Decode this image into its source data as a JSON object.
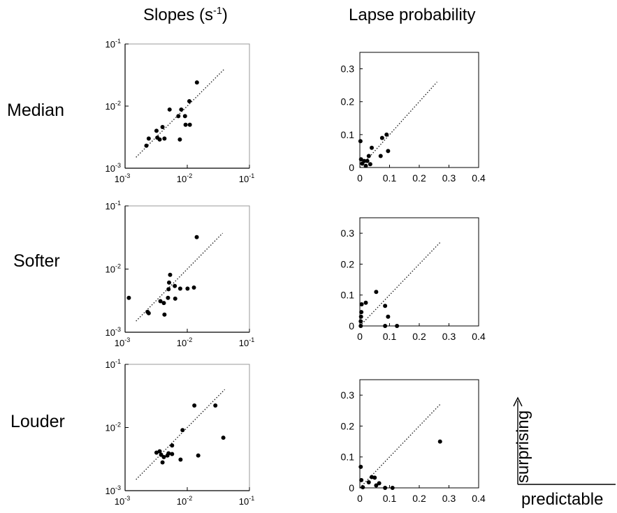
{
  "titles": {
    "slopes_prefix": "Slopes (s",
    "slopes_exp": "-1",
    "slopes_suffix": ")",
    "lapse": "Lapse probability"
  },
  "row_labels": [
    "Median",
    "Softer",
    "Louder"
  ],
  "legend": {
    "y": "surprising",
    "x": "predictable"
  },
  "chart_data": [
    {
      "type": "scatter",
      "row": "Median",
      "panel": "slopes",
      "scale": "log",
      "xlim": [
        0.001,
        0.1
      ],
      "ylim": [
        0.001,
        0.1
      ],
      "x_ticks": [
        {
          "base": "10",
          "exp": "-3"
        },
        {
          "base": "10",
          "exp": "-2"
        },
        {
          "base": "10",
          "exp": "-1"
        }
      ],
      "y_ticks": [
        {
          "base": "10",
          "exp": "-3"
        },
        {
          "base": "10",
          "exp": "-2"
        },
        {
          "base": "10",
          "exp": "-1"
        }
      ],
      "identity_line": [
        0.0015,
        0.04
      ],
      "points": [
        [
          0.0022,
          0.0023
        ],
        [
          0.0024,
          0.003
        ],
        [
          0.0032,
          0.004
        ],
        [
          0.0033,
          0.0031
        ],
        [
          0.0036,
          0.0029
        ],
        [
          0.004,
          0.0046
        ],
        [
          0.0043,
          0.003
        ],
        [
          0.0052,
          0.0088
        ],
        [
          0.0072,
          0.0069
        ],
        [
          0.0076,
          0.0029
        ],
        [
          0.008,
          0.0088
        ],
        [
          0.0092,
          0.0069
        ],
        [
          0.0094,
          0.005
        ],
        [
          0.0108,
          0.012
        ],
        [
          0.011,
          0.005
        ],
        [
          0.0143,
          0.024
        ]
      ]
    },
    {
      "type": "scatter",
      "row": "Median",
      "panel": "lapse",
      "xlim": [
        0,
        0.4
      ],
      "ylim": [
        0,
        0.35
      ],
      "x_ticks": [
        "0",
        "0.1",
        "0.2",
        "0.3",
        "0.4"
      ],
      "y_ticks": [
        "0",
        "0.1",
        "0.2",
        "0.3"
      ],
      "identity_line": [
        0,
        0.26
      ],
      "points": [
        [
          0.002,
          0.08
        ],
        [
          0.004,
          0.025
        ],
        [
          0.008,
          0.012
        ],
        [
          0.015,
          0.02
        ],
        [
          0.02,
          0.005
        ],
        [
          0.025,
          0.02
        ],
        [
          0.03,
          0.035
        ],
        [
          0.035,
          0.01
        ],
        [
          0.04,
          0.06
        ],
        [
          0.07,
          0.035
        ],
        [
          0.075,
          0.09
        ],
        [
          0.09,
          0.1
        ],
        [
          0.095,
          0.05
        ]
      ]
    },
    {
      "type": "scatter",
      "row": "Softer",
      "panel": "slopes",
      "scale": "log",
      "xlim": [
        0.001,
        0.1
      ],
      "ylim": [
        0.001,
        0.1
      ],
      "x_ticks": [
        {
          "base": "10",
          "exp": "-3"
        },
        {
          "base": "10",
          "exp": "-2"
        },
        {
          "base": "10",
          "exp": "-1"
        }
      ],
      "y_ticks": [
        {
          "base": "10",
          "exp": "-3"
        },
        {
          "base": "10",
          "exp": "-2"
        },
        {
          "base": "10",
          "exp": "-1"
        }
      ],
      "identity_line": [
        0.0015,
        0.037
      ],
      "points": [
        [
          0.00115,
          0.0035
        ],
        [
          0.0023,
          0.0021
        ],
        [
          0.0024,
          0.002
        ],
        [
          0.0037,
          0.0031
        ],
        [
          0.0042,
          0.0029
        ],
        [
          0.0043,
          0.0019
        ],
        [
          0.0049,
          0.0035
        ],
        [
          0.005,
          0.0048
        ],
        [
          0.0051,
          0.0061
        ],
        [
          0.0053,
          0.0081
        ],
        [
          0.0063,
          0.0054
        ],
        [
          0.0064,
          0.0034
        ],
        [
          0.0077,
          0.0049
        ],
        [
          0.0101,
          0.0049
        ],
        [
          0.0128,
          0.0051
        ],
        [
          0.0142,
          0.032
        ]
      ]
    },
    {
      "type": "scatter",
      "row": "Softer",
      "panel": "lapse",
      "xlim": [
        0,
        0.4
      ],
      "ylim": [
        0,
        0.35
      ],
      "x_ticks": [
        "0",
        "0.1",
        "0.2",
        "0.3",
        "0.4"
      ],
      "y_ticks": [
        "0",
        "0.1",
        "0.2",
        "0.3"
      ],
      "identity_line": [
        0,
        0.27
      ],
      "points": [
        [
          0.003,
          0.0
        ],
        [
          0.003,
          0.015
        ],
        [
          0.004,
          0.03
        ],
        [
          0.005,
          0.045
        ],
        [
          0.006,
          0.07
        ],
        [
          0.02,
          0.075
        ],
        [
          0.055,
          0.11
        ],
        [
          0.085,
          0.065
        ],
        [
          0.085,
          0.0
        ],
        [
          0.095,
          0.03
        ],
        [
          0.125,
          0.0
        ]
      ]
    },
    {
      "type": "scatter",
      "row": "Louder",
      "panel": "slopes",
      "scale": "log",
      "xlim": [
        0.001,
        0.1
      ],
      "ylim": [
        0.001,
        0.1
      ],
      "x_ticks": [
        {
          "base": "10",
          "exp": "-3"
        },
        {
          "base": "10",
          "exp": "-2"
        },
        {
          "base": "10",
          "exp": "-1"
        }
      ],
      "y_ticks": [
        {
          "base": "10",
          "exp": "-3"
        },
        {
          "base": "10",
          "exp": "-2"
        },
        {
          "base": "10",
          "exp": "-1"
        }
      ],
      "identity_line": [
        0.0015,
        0.04
      ],
      "points": [
        [
          0.0032,
          0.004
        ],
        [
          0.0036,
          0.0042
        ],
        [
          0.0038,
          0.0037
        ],
        [
          0.004,
          0.0028
        ],
        [
          0.0042,
          0.0034
        ],
        [
          0.0048,
          0.0036
        ],
        [
          0.005,
          0.0039
        ],
        [
          0.0057,
          0.0052
        ],
        [
          0.0057,
          0.0038
        ],
        [
          0.0078,
          0.0031
        ],
        [
          0.0084,
          0.0091
        ],
        [
          0.013,
          0.0223
        ],
        [
          0.015,
          0.0036
        ],
        [
          0.0283,
          0.0223
        ],
        [
          0.038,
          0.0069
        ]
      ]
    },
    {
      "type": "scatter",
      "row": "Louder",
      "panel": "lapse",
      "xlim": [
        0,
        0.4
      ],
      "ylim": [
        0,
        0.35
      ],
      "x_ticks": [
        "0",
        "0.1",
        "0.2",
        "0.3",
        "0.4"
      ],
      "y_ticks": [
        "0",
        "0.1",
        "0.2",
        "0.3"
      ],
      "identity_line": [
        0,
        0.27
      ],
      "points": [
        [
          0.003,
          0.068
        ],
        [
          0.005,
          0.025
        ],
        [
          0.01,
          0.002
        ],
        [
          0.03,
          0.018
        ],
        [
          0.04,
          0.035
        ],
        [
          0.05,
          0.033
        ],
        [
          0.055,
          0.008
        ],
        [
          0.065,
          0.015
        ],
        [
          0.085,
          0.0
        ],
        [
          0.11,
          0.0
        ],
        [
          0.27,
          0.15
        ]
      ]
    }
  ]
}
